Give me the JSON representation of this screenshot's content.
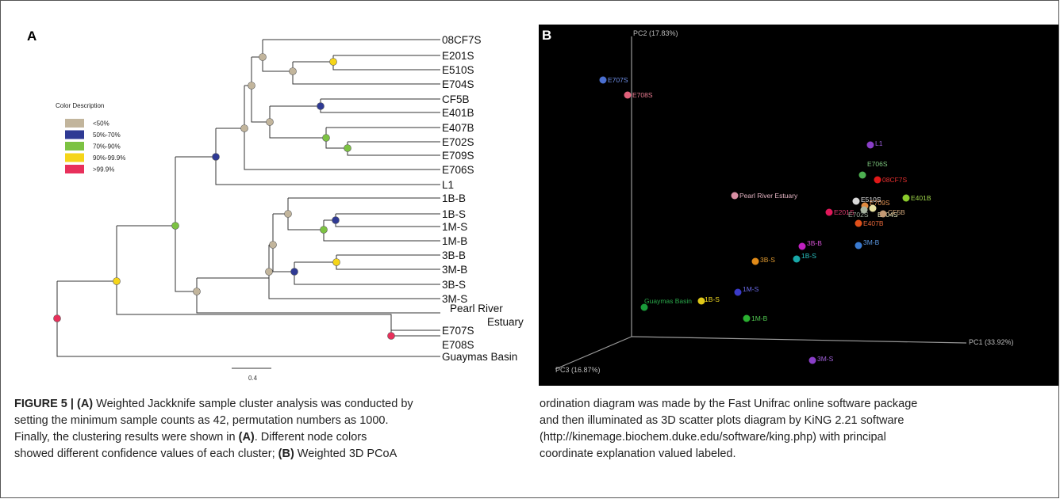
{
  "panel_a": {
    "letter": "A",
    "legend": {
      "title": "Color Description",
      "items": [
        {
          "label": "<50%",
          "color": "#c2b59c"
        },
        {
          "label": "50%-70%",
          "color": "#2f3a94"
        },
        {
          "label": "70%-90%",
          "color": "#7cc242"
        },
        {
          "label": "90%-99.9%",
          "color": "#f5d519"
        },
        {
          "label": ">99.9%",
          "color": "#e8305b"
        }
      ]
    },
    "scale_bar_label": "0.4",
    "leaves": [
      "08CF7S",
      "E201S",
      "E510S",
      "E704S",
      "CF5B",
      "E401B",
      "E407B",
      "E702S",
      "E709S",
      "E706S",
      "L1",
      "1B-B",
      "1B-S",
      "1M-S",
      "1M-B",
      "3B-B",
      "3M-B",
      "3B-S",
      "3M-S",
      "Pearl River",
      "Estuary",
      "E707S",
      "E708S",
      "Guaymas Basin"
    ]
  },
  "panel_b": {
    "letter": "B",
    "axis_labels": {
      "pc1": "PC1 (33.92%)",
      "pc2": "PC2 (17.83%)",
      "pc3": "PC3 (16.87%)"
    },
    "points": [
      {
        "label": "E707S",
        "color": "#4a6fd0",
        "text_color": "#6f8fe8"
      },
      {
        "label": "E708S",
        "color": "#e0607a",
        "text_color": "#e87a8f"
      },
      {
        "label": "L1",
        "color": "#8a3ec8",
        "text_color": "#a060e0"
      },
      {
        "label": "E706S",
        "color": "#4caf50",
        "text_color": "#7ec87e"
      },
      {
        "label": "08CF7S",
        "color": "#e01818",
        "text_color": "#e83030"
      },
      {
        "label": "Pearl River Estuary",
        "color": "#d88fa3",
        "text_color": "#e3b3c2"
      },
      {
        "label": "E510S",
        "color": "#d8d8d8",
        "text_color": "#e6e6e6"
      },
      {
        "label": "E709S",
        "color": "#e08a40",
        "text_color": "#e09050"
      },
      {
        "label": "E401B",
        "color": "#8acb2c",
        "text_color": "#a0d84a"
      },
      {
        "label": "E201S",
        "color": "#e0185a",
        "text_color": "#e03a6e"
      },
      {
        "label": "E702S",
        "color": "#a8b4a0",
        "text_color": "#9aa89a"
      },
      {
        "label": "E704S",
        "color": "#e8e0a0",
        "text_color": "#f0eec0"
      },
      {
        "label": "CF5B",
        "color": "#c49a74",
        "text_color": "#d4a87c"
      },
      {
        "label": "E407B",
        "color": "#e0501a",
        "text_color": "#e8683a"
      },
      {
        "label": "3B-B",
        "color": "#c020c0",
        "text_color": "#d050d0"
      },
      {
        "label": "3M-B",
        "color": "#3a7ad0",
        "text_color": "#5a96e0"
      },
      {
        "label": "3B-S",
        "color": "#e08a18",
        "text_color": "#e09a30"
      },
      {
        "label": "1B-S",
        "color": "#18a8a8",
        "text_color": "#28c0c0"
      },
      {
        "label": "1M-S",
        "color": "#3a3ac8",
        "text_color": "#6a6ae8"
      },
      {
        "label": "Guaymas Basin",
        "color": "#1a9a3a",
        "text_color": "#2aa84a"
      },
      {
        "label": "1B-S",
        "color": "#e0c818",
        "text_color": "#f0d820"
      },
      {
        "label": "1M-B",
        "color": "#2ab030",
        "text_color": "#50c850"
      },
      {
        "label": "3M-S",
        "color": "#8a3ec8",
        "text_color": "#a060d8"
      }
    ]
  },
  "caption": {
    "left_lines": [
      {
        "bold": "FIGURE 5 | (A)",
        "rest": " Weighted Jackknife sample cluster analysis was conducted by"
      },
      {
        "bold": "",
        "rest": "setting the minimum sample counts as 42, permutation numbers as 1000."
      },
      {
        "bold": "",
        "rest": "Finally, the clustering results were shown in ",
        "bold2": "(A)",
        "rest2": ". Different node colors"
      },
      {
        "bold": "",
        "rest": "showed different confidence values of each cluster; ",
        "bold2": "(B)",
        "rest2": " Weighted 3D PCoA"
      }
    ],
    "right_lines": [
      "ordination diagram was made by the Fast Unifrac online software package",
      "and then illuminated as 3D scatter plots diagram by KiNG 2.21 software",
      "(http://kinemage.biochem.duke.edu/software/king.php) with principal",
      "coordinate explanation valued labeled."
    ]
  }
}
